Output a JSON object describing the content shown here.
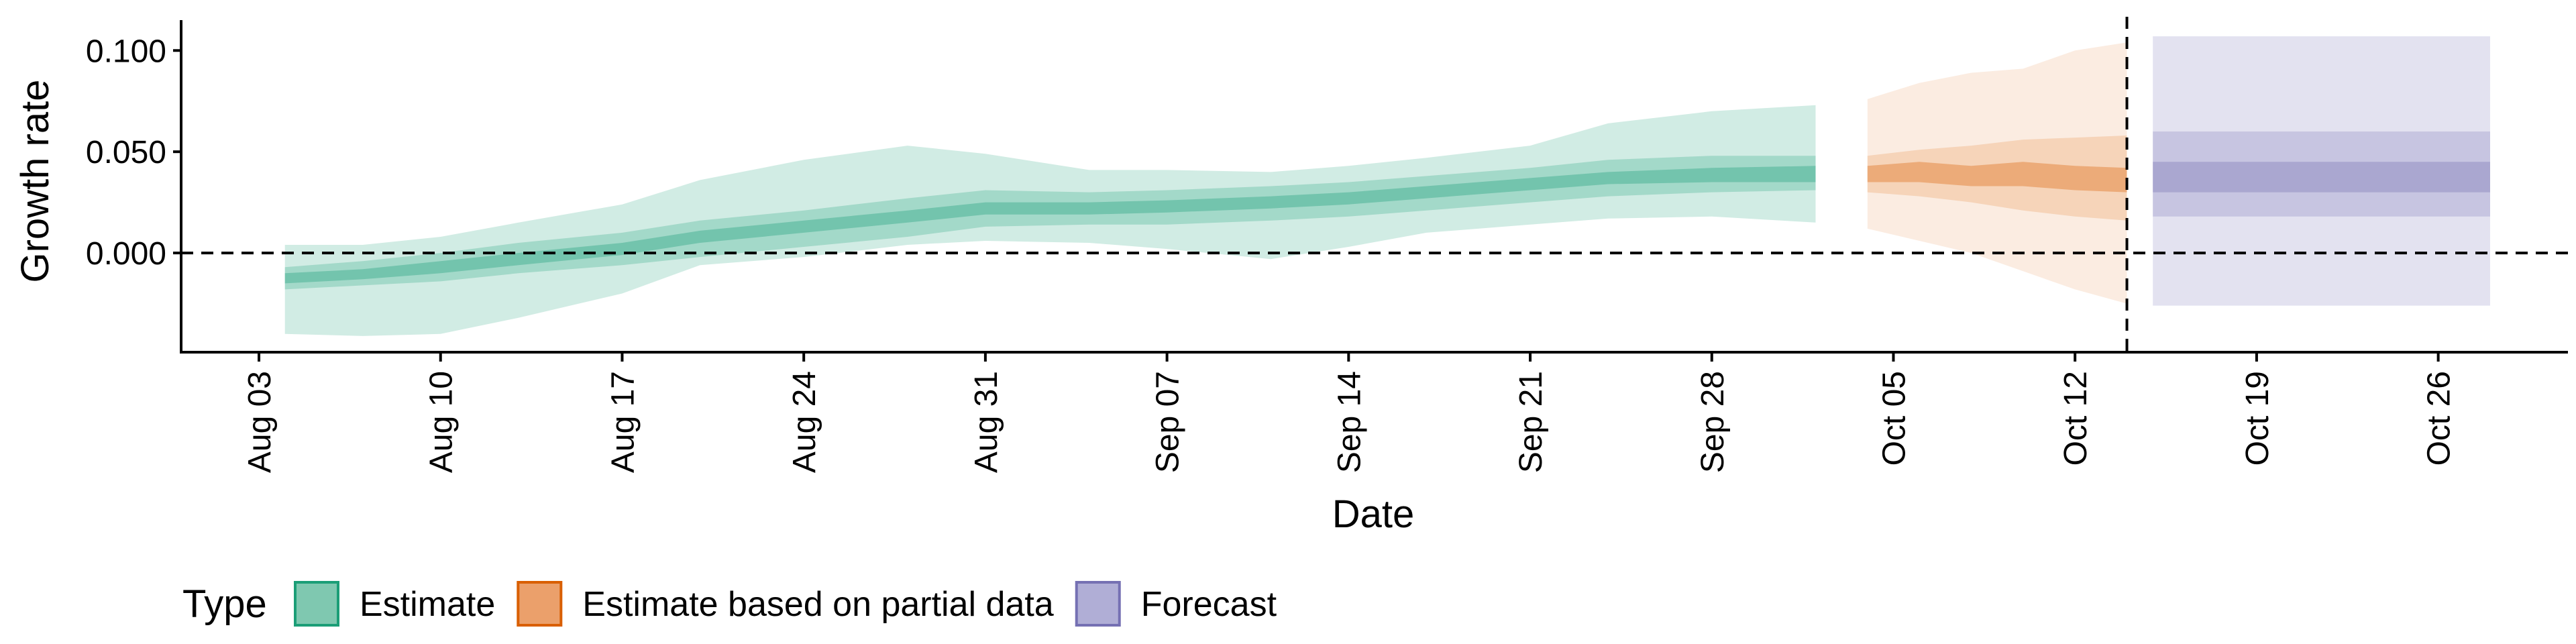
{
  "chart_data": {
    "type": "area",
    "title": "",
    "xlabel": "Date",
    "ylabel": "Growth rate",
    "x_range": [
      "2025-07-31",
      "2025-10-31"
    ],
    "ylim": [
      -0.049,
      0.115
    ],
    "x_ticks": [
      {
        "date": "2025-08-03",
        "label": "Aug 03"
      },
      {
        "date": "2025-08-10",
        "label": "Aug 10"
      },
      {
        "date": "2025-08-17",
        "label": "Aug 17"
      },
      {
        "date": "2025-08-24",
        "label": "Aug 24"
      },
      {
        "date": "2025-08-31",
        "label": "Aug 31"
      },
      {
        "date": "2025-09-07",
        "label": "Sep 07"
      },
      {
        "date": "2025-09-14",
        "label": "Sep 14"
      },
      {
        "date": "2025-09-21",
        "label": "Sep 21"
      },
      {
        "date": "2025-09-28",
        "label": "Sep 28"
      },
      {
        "date": "2025-10-05",
        "label": "Oct 05"
      },
      {
        "date": "2025-10-12",
        "label": "Oct 12"
      },
      {
        "date": "2025-10-19",
        "label": "Oct 19"
      },
      {
        "date": "2025-10-26",
        "label": "Oct 26"
      }
    ],
    "y_ticks": [
      {
        "value": 0.0,
        "label": "0.000"
      },
      {
        "value": 0.05,
        "label": "0.050"
      },
      {
        "value": 0.1,
        "label": "0.100"
      }
    ],
    "reference_lines": {
      "horizontal_y": 0.0,
      "vertical_x": "2025-10-14",
      "style": "dashed"
    },
    "grid": false,
    "legend": {
      "title": "Type",
      "position": "bottom",
      "items": [
        {
          "label": "Estimate",
          "fill": "#7fc8b0",
          "stroke": "#1b9e77"
        },
        {
          "label": "Estimate based on partial data",
          "fill": "#eba06b",
          "stroke": "#d95f02"
        },
        {
          "label": "Forecast",
          "fill": "#b0aed6",
          "stroke": "#7570b3"
        }
      ]
    },
    "series": [
      {
        "name": "Estimate",
        "colors": {
          "outer": "#1b9e77",
          "middle": "#1b9e77",
          "inner": "#1b9e77"
        },
        "points": [
          {
            "x": "2025-08-04",
            "median": -0.013,
            "l20": -0.015,
            "u20": -0.01,
            "l50": -0.018,
            "u50": -0.007,
            "l90": -0.04,
            "u90": 0.004
          },
          {
            "x": "2025-08-07",
            "median": -0.01,
            "l20": -0.013,
            "u20": -0.008,
            "l50": -0.016,
            "u50": -0.004,
            "l90": -0.041,
            "u90": 0.004
          },
          {
            "x": "2025-08-10",
            "median": -0.007,
            "l20": -0.01,
            "u20": -0.004,
            "l50": -0.014,
            "u50": 0.0,
            "l90": -0.04,
            "u90": 0.008
          },
          {
            "x": "2025-08-13",
            "median": -0.003,
            "l20": -0.006,
            "u20": 0.0,
            "l50": -0.01,
            "u50": 0.005,
            "l90": -0.032,
            "u90": 0.015
          },
          {
            "x": "2025-08-17",
            "median": 0.002,
            "l20": -0.001,
            "u20": 0.005,
            "l50": -0.006,
            "u50": 0.01,
            "l90": -0.02,
            "u90": 0.024
          },
          {
            "x": "2025-08-20",
            "median": 0.008,
            "l20": 0.005,
            "u20": 0.011,
            "l50": -0.002,
            "u50": 0.016,
            "l90": -0.006,
            "u90": 0.036
          },
          {
            "x": "2025-08-24",
            "median": 0.013,
            "l20": 0.01,
            "u20": 0.016,
            "l50": 0.003,
            "u50": 0.021,
            "l90": -0.002,
            "u90": 0.046
          },
          {
            "x": "2025-08-28",
            "median": 0.018,
            "l20": 0.015,
            "u20": 0.021,
            "l50": 0.008,
            "u50": 0.027,
            "l90": 0.004,
            "u90": 0.053
          },
          {
            "x": "2025-08-31",
            "median": 0.022,
            "l20": 0.019,
            "u20": 0.025,
            "l50": 0.013,
            "u50": 0.031,
            "l90": 0.006,
            "u90": 0.049
          },
          {
            "x": "2025-09-04",
            "median": 0.022,
            "l20": 0.019,
            "u20": 0.025,
            "l50": 0.014,
            "u50": 0.03,
            "l90": 0.005,
            "u90": 0.041
          },
          {
            "x": "2025-09-07",
            "median": 0.023,
            "l20": 0.02,
            "u20": 0.026,
            "l50": 0.014,
            "u50": 0.031,
            "l90": 0.002,
            "u90": 0.041
          },
          {
            "x": "2025-09-11",
            "median": 0.025,
            "l20": 0.022,
            "u20": 0.028,
            "l50": 0.016,
            "u50": 0.033,
            "l90": -0.003,
            "u90": 0.04
          },
          {
            "x": "2025-09-14",
            "median": 0.027,
            "l20": 0.024,
            "u20": 0.03,
            "l50": 0.018,
            "u50": 0.035,
            "l90": 0.003,
            "u90": 0.043
          },
          {
            "x": "2025-09-17",
            "median": 0.03,
            "l20": 0.027,
            "u20": 0.033,
            "l50": 0.021,
            "u50": 0.038,
            "l90": 0.01,
            "u90": 0.047
          },
          {
            "x": "2025-09-21",
            "median": 0.034,
            "l20": 0.031,
            "u20": 0.037,
            "l50": 0.025,
            "u50": 0.042,
            "l90": 0.014,
            "u90": 0.053
          },
          {
            "x": "2025-09-24",
            "median": 0.037,
            "l20": 0.034,
            "u20": 0.04,
            "l50": 0.028,
            "u50": 0.046,
            "l90": 0.017,
            "u90": 0.064
          },
          {
            "x": "2025-09-28",
            "median": 0.039,
            "l20": 0.035,
            "u20": 0.042,
            "l50": 0.03,
            "u50": 0.048,
            "l90": 0.018,
            "u90": 0.07
          },
          {
            "x": "2025-10-02",
            "median": 0.039,
            "l20": 0.035,
            "u20": 0.043,
            "l50": 0.031,
            "u50": 0.048,
            "l90": 0.015,
            "u90": 0.073
          }
        ]
      },
      {
        "name": "Estimate based on partial data",
        "colors": {
          "outer": "#eba06b",
          "middle": "#e88a45",
          "inner": "#d95f02"
        },
        "points": [
          {
            "x": "2025-10-04",
            "median": 0.039,
            "l20": 0.035,
            "u20": 0.043,
            "l50": 0.03,
            "u50": 0.048,
            "l90": 0.012,
            "u90": 0.076
          },
          {
            "x": "2025-10-06",
            "median": 0.04,
            "l20": 0.035,
            "u20": 0.045,
            "l50": 0.028,
            "u50": 0.051,
            "l90": 0.006,
            "u90": 0.084
          },
          {
            "x": "2025-10-08",
            "median": 0.038,
            "l20": 0.033,
            "u20": 0.043,
            "l50": 0.025,
            "u50": 0.053,
            "l90": 0.0,
            "u90": 0.089
          },
          {
            "x": "2025-10-10",
            "median": 0.039,
            "l20": 0.033,
            "u20": 0.045,
            "l50": 0.021,
            "u50": 0.056,
            "l90": -0.009,
            "u90": 0.091
          },
          {
            "x": "2025-10-12",
            "median": 0.037,
            "l20": 0.031,
            "u20": 0.043,
            "l50": 0.018,
            "u50": 0.057,
            "l90": -0.018,
            "u90": 0.1
          },
          {
            "x": "2025-10-14",
            "median": 0.036,
            "l20": 0.03,
            "u20": 0.042,
            "l50": 0.016,
            "u50": 0.058,
            "l90": -0.025,
            "u90": 0.104
          }
        ]
      },
      {
        "name": "Forecast",
        "colors": {
          "outer": "#7570b3",
          "middle": "#7570b3",
          "inner": "#7570b3"
        },
        "points": [
          {
            "x": "2025-10-15",
            "median": 0.037,
            "l20": 0.03,
            "u20": 0.045,
            "l50": 0.018,
            "u50": 0.06,
            "l90": -0.026,
            "u90": 0.107
          },
          {
            "x": "2025-10-28",
            "median": 0.037,
            "l20": 0.03,
            "u20": 0.045,
            "l50": 0.018,
            "u50": 0.06,
            "l90": -0.026,
            "u90": 0.107
          }
        ]
      }
    ]
  }
}
